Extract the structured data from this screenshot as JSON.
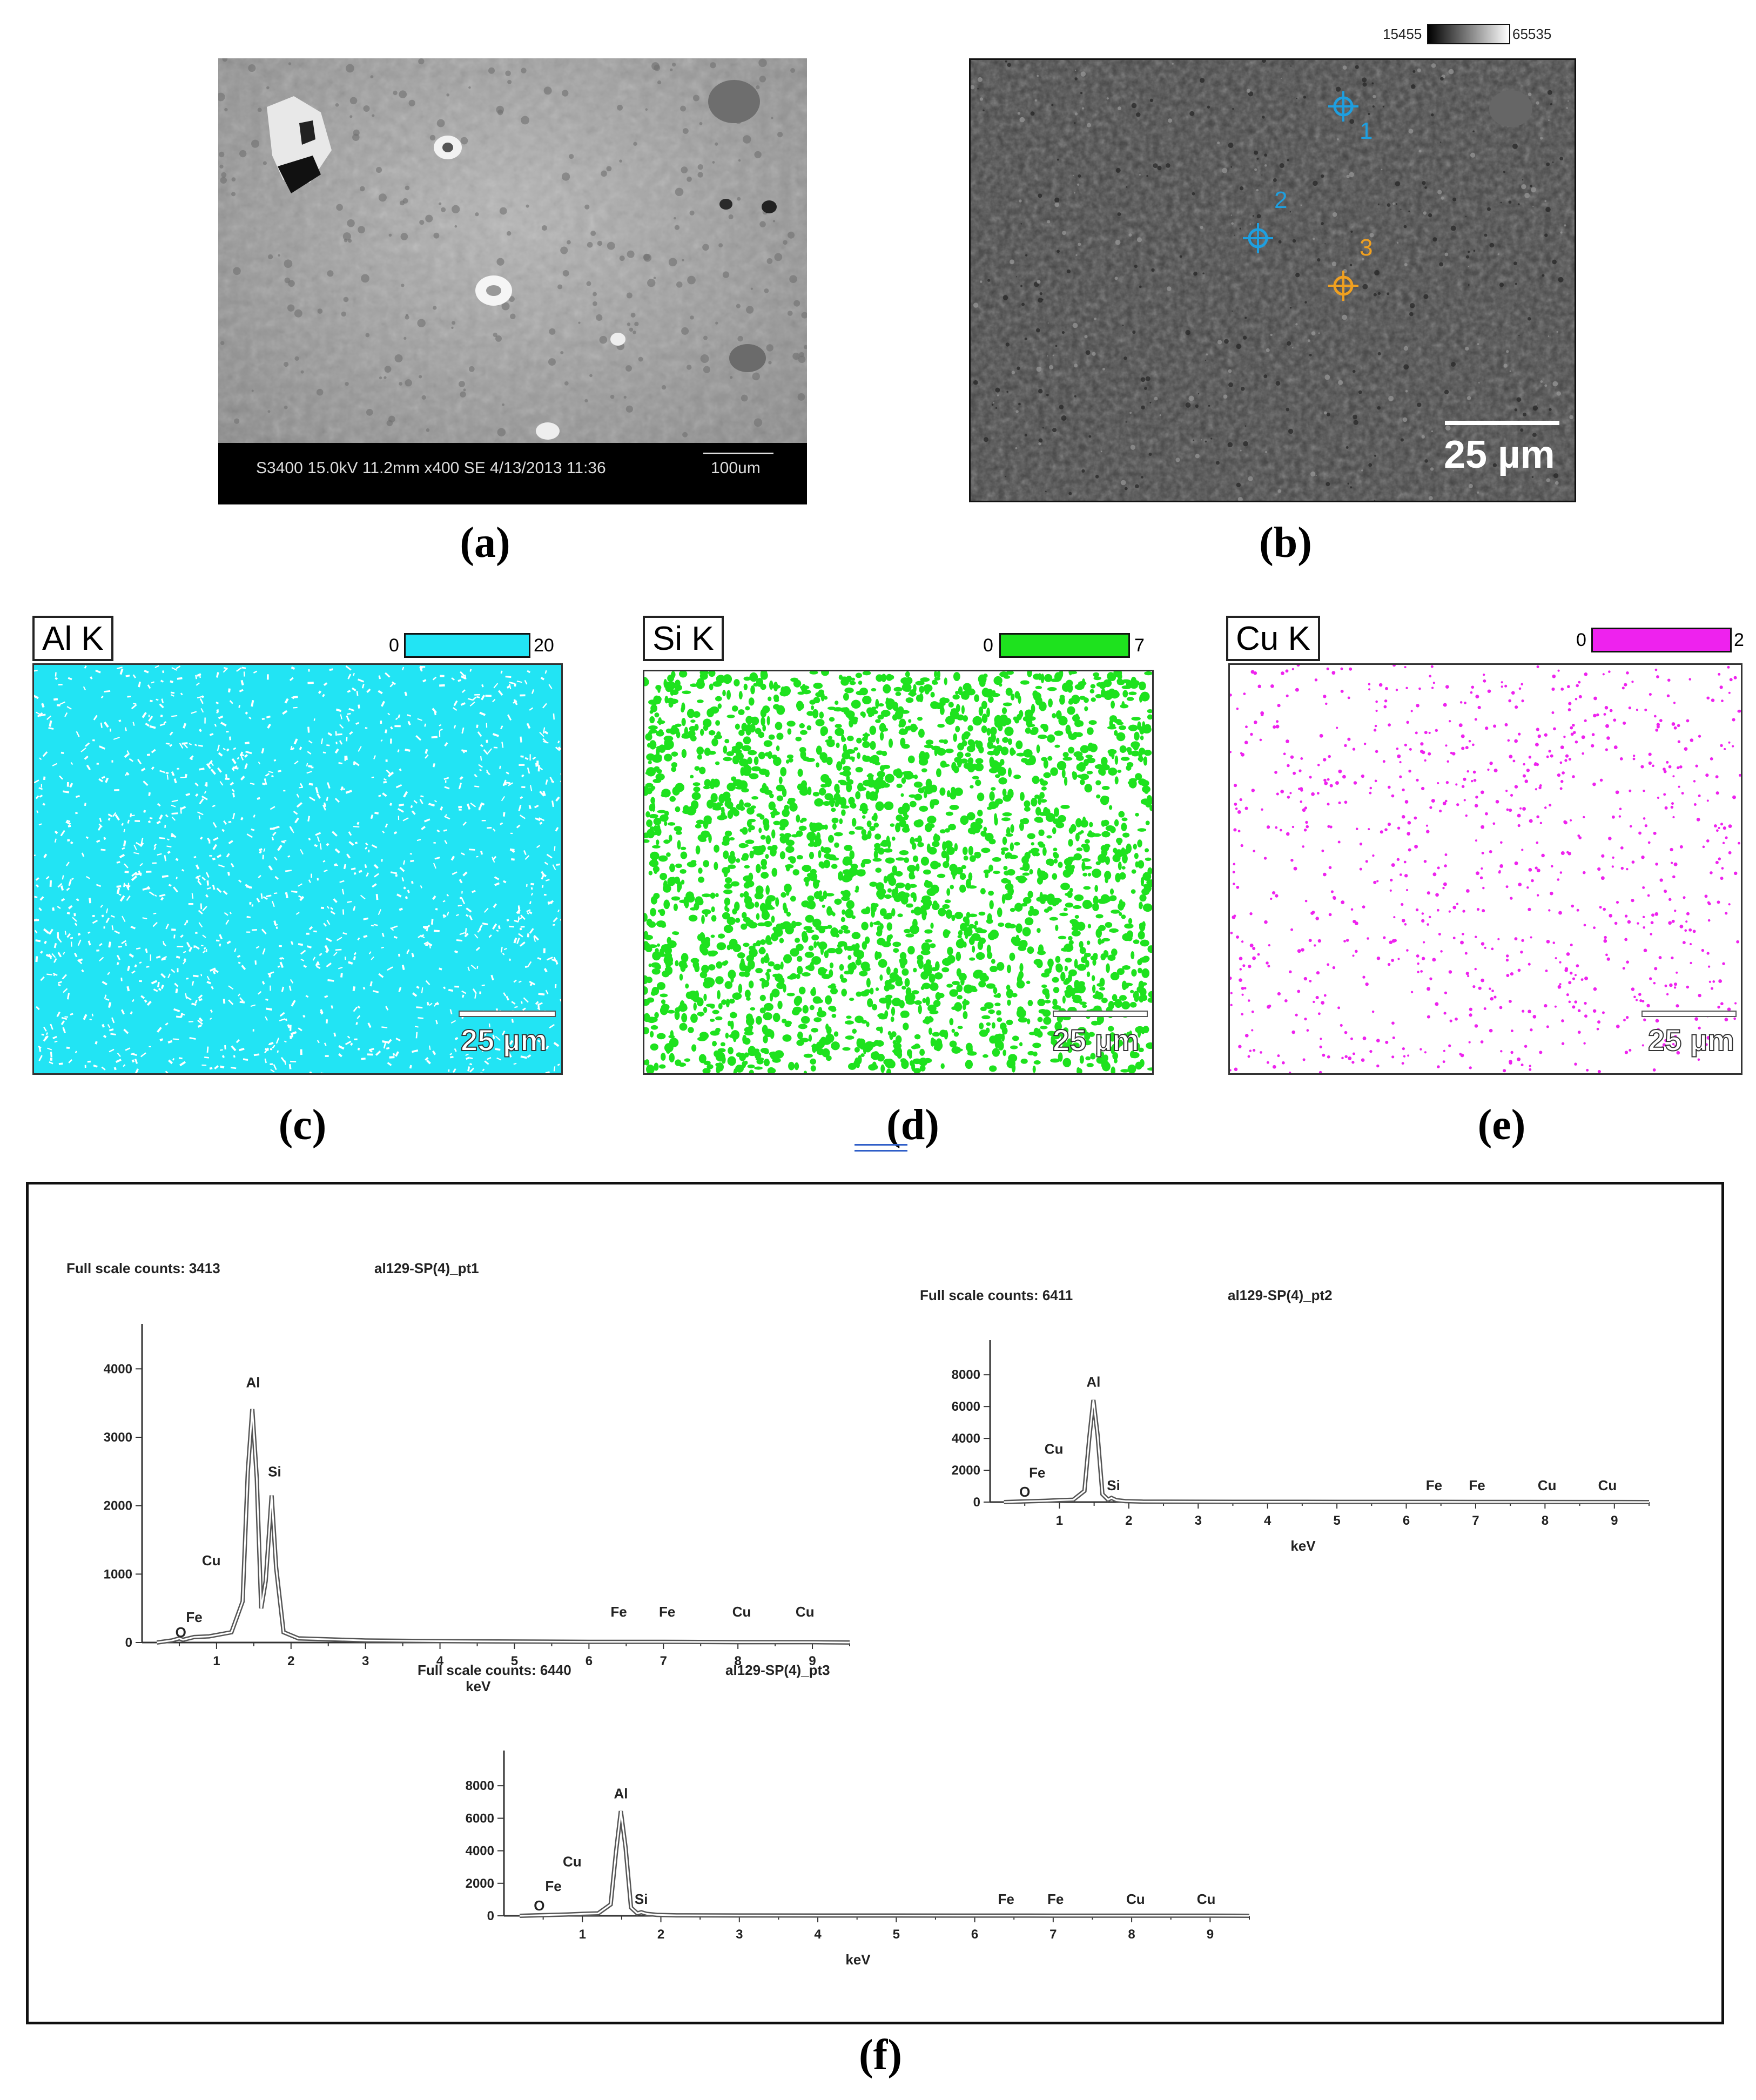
{
  "panels": {
    "a": {
      "caption": "(a)",
      "info_bar": "S3400 15.0kV 11.2mm x400 SE  4/13/2013 11:36",
      "scale_label": "100um"
    },
    "b": {
      "caption": "(b)",
      "range_min": "15455",
      "range_max": "65535",
      "points": [
        {
          "label": "1",
          "color": "#1e9fe0"
        },
        {
          "label": "2",
          "color": "#1e9fe0"
        },
        {
          "label": "3",
          "color": "#f0a020"
        }
      ],
      "scale_label": "25 µm"
    },
    "c": {
      "caption": "(c)",
      "element": "Al K",
      "min": "0",
      "max": "20",
      "color": "#22e4f4",
      "scale_label": "25 µm"
    },
    "d": {
      "caption": "(d)",
      "element": "Si K",
      "min": "0",
      "max": "7",
      "color": "#1ee21e",
      "scale_label": "25 µm"
    },
    "e": {
      "caption": "(e)",
      "element": "Cu K",
      "min": "0",
      "max": "2",
      "color": "#ee22ee",
      "scale_label": "25 µm"
    },
    "f": {
      "caption": "(f)"
    }
  },
  "chart_data": [
    {
      "type": "line",
      "title": "Full scale counts: 3413",
      "series_label": "al129-SP(4)_pt1",
      "xlabel": "keV",
      "xlim": [
        0,
        9.5
      ],
      "ylim": [
        0,
        4500
      ],
      "xticks": [
        1,
        2,
        3,
        4,
        5,
        6,
        7,
        8,
        9
      ],
      "yticks": [
        0,
        1000,
        2000,
        3000,
        4000
      ],
      "x": [
        0.2,
        0.4,
        0.5,
        0.55,
        0.7,
        0.9,
        1.0,
        1.2,
        1.35,
        1.42,
        1.48,
        1.54,
        1.6,
        1.66,
        1.74,
        1.8,
        1.9,
        2.1,
        3.0,
        4.0,
        5.0,
        6.0,
        7.0,
        8.0,
        9.0,
        9.5
      ],
      "y": [
        0,
        30,
        60,
        40,
        80,
        90,
        110,
        150,
        600,
        2500,
        3413,
        2400,
        500,
        900,
        2150,
        1100,
        150,
        60,
        30,
        20,
        15,
        10,
        10,
        5,
        5,
        0
      ],
      "peak_labels": [
        {
          "label": "O",
          "x": 0.52,
          "y": 0
        },
        {
          "label": "Fe",
          "x": 0.7,
          "y": 220
        },
        {
          "label": "Cu",
          "x": 0.93,
          "y": 1050
        },
        {
          "label": "Al",
          "x": 1.49,
          "y": 3650
        },
        {
          "label": "Si",
          "x": 1.78,
          "y": 2350
        },
        {
          "label": "Fe",
          "x": 6.4,
          "y": 300
        },
        {
          "label": "Fe",
          "x": 7.05,
          "y": 300
        },
        {
          "label": "Cu",
          "x": 8.05,
          "y": 300
        },
        {
          "label": "Cu",
          "x": 8.9,
          "y": 300
        }
      ]
    },
    {
      "type": "line",
      "title": "Full scale counts: 6411",
      "series_label": "al129-SP(4)_pt2",
      "xlabel": "keV",
      "xlim": [
        0,
        9.5
      ],
      "ylim": [
        0,
        9500
      ],
      "xticks": [
        1,
        2,
        3,
        4,
        5,
        6,
        7,
        8,
        9
      ],
      "yticks": [
        0,
        2000,
        4000,
        6000,
        8000
      ],
      "x": [
        0.2,
        0.5,
        0.8,
        1.0,
        1.2,
        1.36,
        1.43,
        1.49,
        1.55,
        1.62,
        1.7,
        1.75,
        1.82,
        1.95,
        2.2,
        3.0,
        5.0,
        7.0,
        9.0,
        9.5
      ],
      "y": [
        0,
        40,
        80,
        120,
        150,
        700,
        4000,
        6411,
        4200,
        500,
        150,
        260,
        120,
        60,
        30,
        20,
        15,
        10,
        5,
        0
      ],
      "peak_labels": [
        {
          "label": "O",
          "x": 0.5,
          "y": 0
        },
        {
          "label": "Fe",
          "x": 0.68,
          "y": 1200
        },
        {
          "label": "Cu",
          "x": 0.92,
          "y": 2700
        },
        {
          "label": "Al",
          "x": 1.49,
          "y": 6900
        },
        {
          "label": "Si",
          "x": 1.78,
          "y": 400
        },
        {
          "label": "Fe",
          "x": 6.4,
          "y": 400
        },
        {
          "label": "Fe",
          "x": 7.02,
          "y": 400
        },
        {
          "label": "Cu",
          "x": 8.03,
          "y": 400
        },
        {
          "label": "Cu",
          "x": 8.9,
          "y": 400
        }
      ]
    },
    {
      "type": "line",
      "title": "Full scale counts: 6440",
      "series_label": "al129-SP(4)_pt3",
      "xlabel": "keV",
      "xlim": [
        0,
        9.5
      ],
      "ylim": [
        0,
        9500
      ],
      "xticks": [
        1,
        2,
        3,
        4,
        5,
        6,
        7,
        8,
        9
      ],
      "yticks": [
        0,
        2000,
        4000,
        6000,
        8000
      ],
      "x": [
        0.2,
        0.5,
        0.8,
        1.0,
        1.2,
        1.36,
        1.43,
        1.49,
        1.55,
        1.62,
        1.7,
        1.75,
        1.82,
        1.95,
        2.2,
        3.0,
        5.0,
        7.0,
        9.0,
        9.5
      ],
      "y": [
        0,
        40,
        80,
        120,
        150,
        700,
        4000,
        6440,
        4200,
        500,
        150,
        220,
        120,
        60,
        30,
        20,
        15,
        10,
        5,
        0
      ],
      "peak_labels": [
        {
          "label": "O",
          "x": 0.45,
          "y": 0
        },
        {
          "label": "Fe",
          "x": 0.63,
          "y": 1200
        },
        {
          "label": "Cu",
          "x": 0.87,
          "y": 2700
        },
        {
          "label": "Al",
          "x": 1.49,
          "y": 6900
        },
        {
          "label": "Si",
          "x": 1.75,
          "y": 400
        },
        {
          "label": "Fe",
          "x": 6.4,
          "y": 400
        },
        {
          "label": "Fe",
          "x": 7.03,
          "y": 400
        },
        {
          "label": "Cu",
          "x": 8.05,
          "y": 400
        },
        {
          "label": "Cu",
          "x": 8.95,
          "y": 400
        }
      ]
    }
  ]
}
